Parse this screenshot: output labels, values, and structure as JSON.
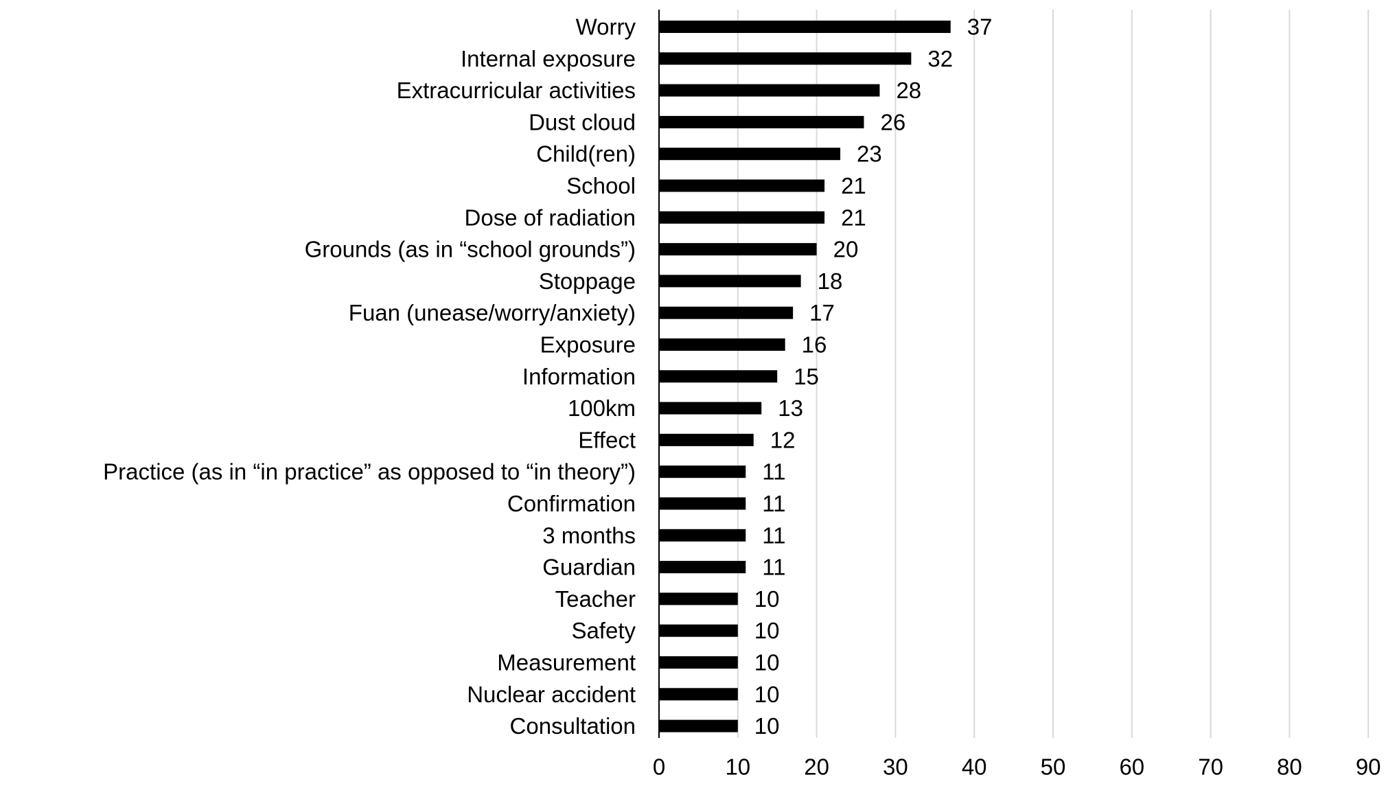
{
  "colors": {
    "bar": "#000000",
    "gridline": "#d9d9d9",
    "axis": "#000000",
    "text": "#000000",
    "background": "#ffffff"
  },
  "chart_data": {
    "type": "bar",
    "orientation": "horizontal",
    "title": "",
    "xlabel": "",
    "ylabel": "",
    "categories": [
      "Worry",
      "Internal exposure",
      "Extracurricular activities",
      "Dust cloud",
      "Child(ren)",
      "School",
      "Dose of radiation",
      "Grounds (as in “school grounds”)",
      "Stoppage",
      "Fuan (unease/worry/anxiety)",
      "Exposure",
      "Information",
      "100km",
      "Effect",
      "Practice (as in “in practice” as opposed to “in theory”)",
      "Confirmation",
      "3 months",
      "Guardian",
      "Teacher",
      "Safety",
      "Measurement",
      "Nuclear accident",
      "Consultation"
    ],
    "values": [
      37,
      32,
      28,
      26,
      23,
      21,
      21,
      20,
      18,
      17,
      16,
      15,
      13,
      12,
      11,
      11,
      11,
      11,
      10,
      10,
      10,
      10,
      10
    ],
    "data_labels": [
      "37",
      "32",
      "28",
      "26",
      "23",
      "21",
      "21",
      "20",
      "18",
      "17",
      "16",
      "15",
      "13",
      "12",
      "11",
      "11",
      "11",
      "11",
      "10",
      "10",
      "10",
      "10",
      "10"
    ],
    "xlim": [
      0,
      90
    ],
    "x_ticks": [
      0,
      10,
      20,
      30,
      40,
      50,
      60,
      70,
      80,
      90
    ],
    "x_tick_labels": [
      "0",
      "10",
      "20",
      "30",
      "40",
      "50",
      "60",
      "70",
      "80",
      "90"
    ],
    "grid": "vertical",
    "legend": "none"
  }
}
